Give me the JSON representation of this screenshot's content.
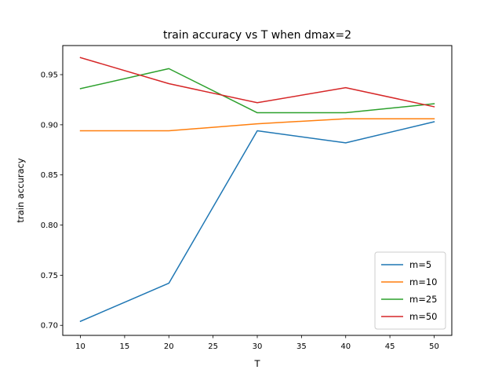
{
  "chart_data": {
    "type": "line",
    "title": "train accuracy vs T when dmax=2",
    "xlabel": "T",
    "ylabel": "train accuracy",
    "x": [
      10,
      20,
      30,
      40,
      50
    ],
    "xlim": [
      8,
      52
    ],
    "ylim": [
      0.69,
      0.979
    ],
    "xticks": [
      "10",
      "15",
      "20",
      "25",
      "30",
      "35",
      "40",
      "45",
      "50"
    ],
    "yticks": [
      "0.70",
      "0.75",
      "0.80",
      "0.85",
      "0.90",
      "0.95"
    ],
    "grid": false,
    "legend_position": "lower-right",
    "series": [
      {
        "name": "m=5",
        "color": "#1f77b4",
        "values": [
          0.704,
          0.742,
          0.894,
          0.882,
          0.903
        ]
      },
      {
        "name": "m=10",
        "color": "#ff7f0e",
        "values": [
          0.894,
          0.894,
          0.901,
          0.906,
          0.906
        ]
      },
      {
        "name": "m=25",
        "color": "#2ca02c",
        "values": [
          0.936,
          0.956,
          0.912,
          0.912,
          0.921
        ]
      },
      {
        "name": "m=50",
        "color": "#d62728",
        "values": [
          0.967,
          0.941,
          0.922,
          0.937,
          0.918
        ]
      }
    ]
  }
}
